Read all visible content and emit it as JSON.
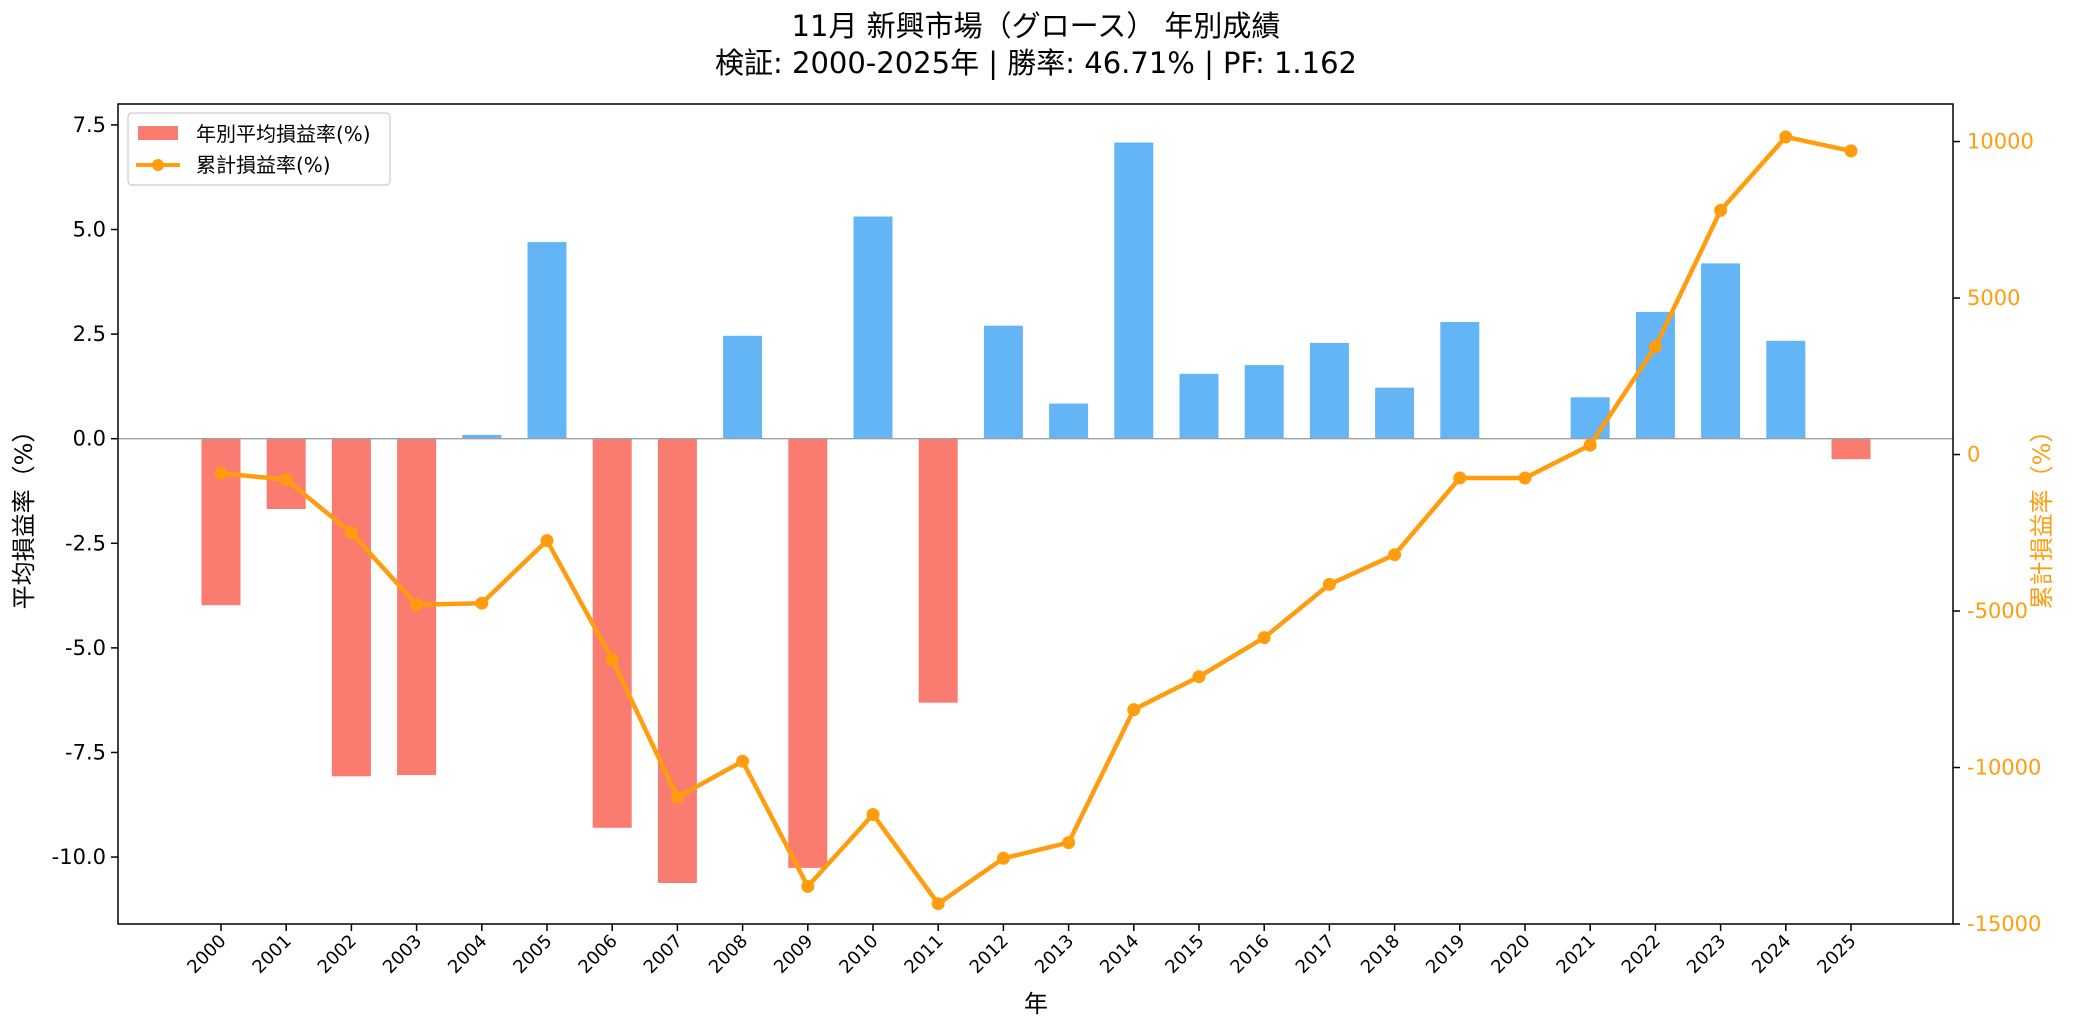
{
  "chart_data": {
    "type": "bar",
    "title": "11月 新興市場（グロース） 年別成績",
    "subtitle": "検証: 2000-2025年 | 勝率: 46.71% | PF: 1.162",
    "xlabel": "年",
    "ylabel": "平均損益率（%）",
    "ylabel_right": "累計損益率（%）",
    "categories": [
      "2000",
      "2001",
      "2002",
      "2003",
      "2004",
      "2005",
      "2006",
      "2007",
      "2008",
      "2009",
      "2010",
      "2011",
      "2012",
      "2013",
      "2014",
      "2015",
      "2016",
      "2017",
      "2018",
      "2019",
      "2020",
      "2021",
      "2022",
      "2023",
      "2024",
      "2025"
    ],
    "ylim": [
      -11.6,
      8.0
    ],
    "ylim_right": [
      -15000,
      11200
    ],
    "yticks": [
      -10.0,
      -7.5,
      -5.0,
      -2.5,
      0.0,
      2.5,
      5.0,
      7.5
    ],
    "yticks_right": [
      -15000,
      -10000,
      -5000,
      0,
      5000,
      10000
    ],
    "grid": false,
    "legend_position": "top-left",
    "colors": {
      "positive": "#64b5f6",
      "negative": "#fa7b6f",
      "line": "#ff9d0f",
      "zero_line": "#a0a0a0"
    },
    "series": [
      {
        "name": "年別平均損益率(%)",
        "type": "bar",
        "axis": "left",
        "values": [
          -3.98,
          -1.68,
          -8.07,
          -8.04,
          0.09,
          4.7,
          -9.3,
          -10.62,
          2.46,
          -10.26,
          5.31,
          -6.31,
          2.7,
          0.84,
          7.08,
          1.55,
          1.76,
          2.29,
          1.22,
          2.79,
          0.0,
          0.99,
          3.03,
          4.19,
          2.34,
          -0.49
        ]
      },
      {
        "name": "累計損益率(%)",
        "type": "line",
        "axis": "right",
        "values": [
          -600,
          -800,
          -2500,
          -4800,
          -4750,
          -2750,
          -6550,
          -10950,
          -9800,
          -13800,
          -11500,
          -14350,
          -12900,
          -12400,
          -8150,
          -7100,
          -5850,
          -4150,
          -3200,
          -750,
          -750,
          300,
          3450,
          7800,
          10150,
          9700
        ]
      }
    ]
  }
}
